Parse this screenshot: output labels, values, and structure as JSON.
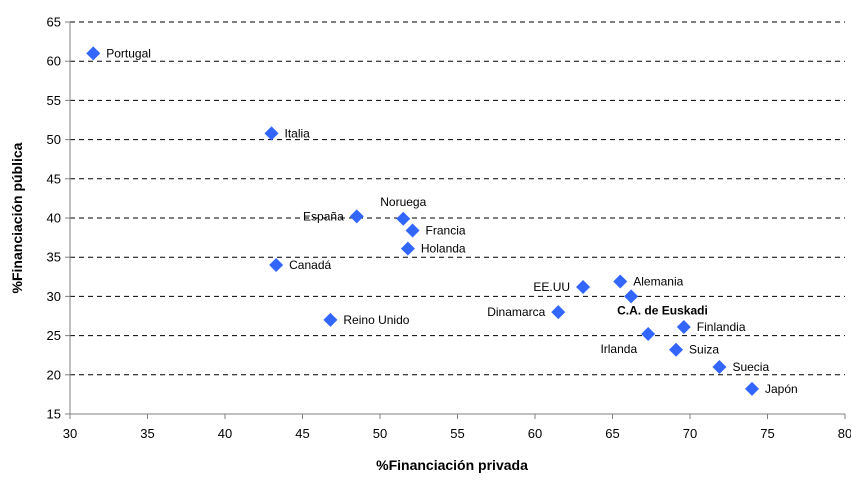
{
  "chart_data": {
    "type": "scatter",
    "xlabel": "%Financiación privada",
    "ylabel": "%Financiación pública",
    "xlim": [
      30,
      80
    ],
    "ylim": [
      15,
      65
    ],
    "xticks": [
      30,
      35,
      40,
      45,
      50,
      55,
      60,
      65,
      70,
      75,
      80
    ],
    "yticks": [
      15,
      20,
      25,
      30,
      35,
      40,
      45,
      50,
      55,
      60,
      65
    ],
    "grid": "horizontal dashed",
    "marker_color": "#3366FF",
    "points": [
      {
        "label": "Portugal",
        "x": 31.5,
        "y": 61.0,
        "pos": "right"
      },
      {
        "label": "Italia",
        "x": 43.0,
        "y": 50.8,
        "pos": "right"
      },
      {
        "label": "España",
        "x": 48.5,
        "y": 40.2,
        "pos": "left"
      },
      {
        "label": "Noruega",
        "x": 51.5,
        "y": 39.9,
        "pos": "above"
      },
      {
        "label": "Francia",
        "x": 52.1,
        "y": 38.4,
        "pos": "right"
      },
      {
        "label": "Holanda",
        "x": 51.8,
        "y": 36.1,
        "pos": "right"
      },
      {
        "label": "Canadá",
        "x": 43.3,
        "y": 34.0,
        "pos": "right"
      },
      {
        "label": "Reino Unido",
        "x": 46.8,
        "y": 27.0,
        "pos": "right"
      },
      {
        "label": "EE.UU",
        "x": 63.1,
        "y": 31.2,
        "pos": "left"
      },
      {
        "label": "Alemania",
        "x": 65.5,
        "y": 31.9,
        "pos": "right"
      },
      {
        "label": "Dinamarca",
        "x": 61.5,
        "y": 28.0,
        "pos": "left"
      },
      {
        "label": "C.A. de Euskadi",
        "x": 66.2,
        "y": 30.0,
        "pos": "below-right",
        "bold": true
      },
      {
        "label": "Finlandia",
        "x": 69.6,
        "y": 26.1,
        "pos": "right"
      },
      {
        "label": "Irlanda",
        "x": 67.3,
        "y": 25.2,
        "pos": "below-left"
      },
      {
        "label": "Suiza",
        "x": 69.1,
        "y": 23.2,
        "pos": "right"
      },
      {
        "label": "Suecia",
        "x": 71.9,
        "y": 21.0,
        "pos": "right"
      },
      {
        "label": "Japón",
        "x": 74.0,
        "y": 18.2,
        "pos": "right"
      }
    ]
  }
}
